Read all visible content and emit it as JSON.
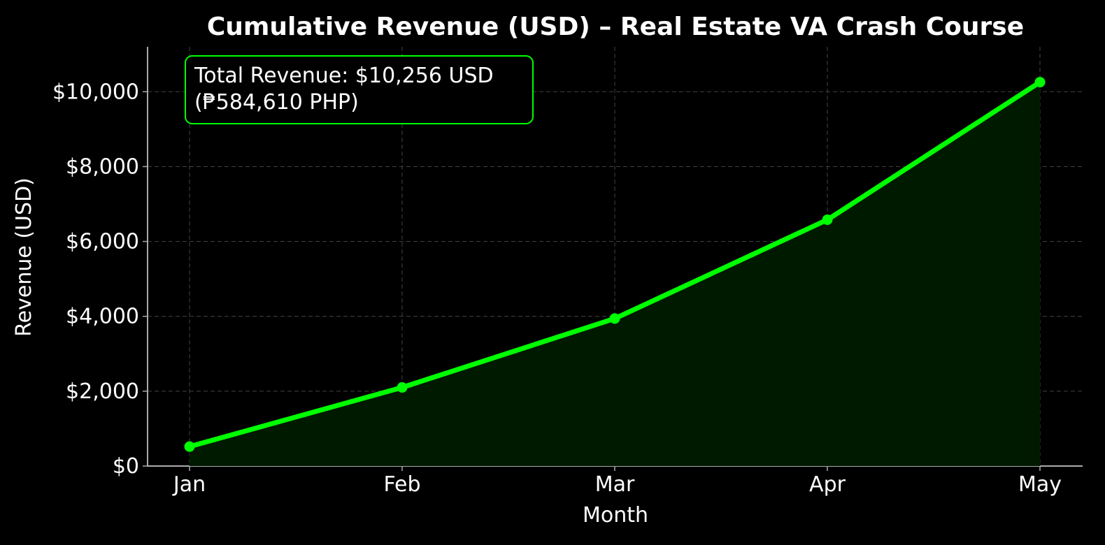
{
  "chart_data": {
    "type": "area",
    "title": "Cumulative Revenue (USD) – Real Estate VA Crash Course",
    "xlabel": "Month",
    "ylabel": "Revenue (USD)",
    "categories": [
      "Jan",
      "Feb",
      "Mar",
      "Apr",
      "May"
    ],
    "series": [
      {
        "values": [
          520,
          2100,
          3940,
          6580,
          10256
        ]
      }
    ],
    "ylim": [
      0,
      11200
    ],
    "yticks": [
      0,
      2000,
      4000,
      6000,
      8000,
      10000
    ],
    "ytick_labels": [
      "$0",
      "$2,000",
      "$4,000",
      "$6,000",
      "$8,000",
      "$10,000"
    ],
    "grid": true,
    "annotation": {
      "line1": "Total Revenue: $10,256 USD",
      "line2": "(₱584,610 PHP)"
    },
    "colors": {
      "background": "#000000",
      "line": "#00ff00",
      "fill": "#001a00",
      "grid": "#444444",
      "axis": "#aaaaaa",
      "text": "#ffffff",
      "annotation_border": "#00ff00"
    }
  }
}
